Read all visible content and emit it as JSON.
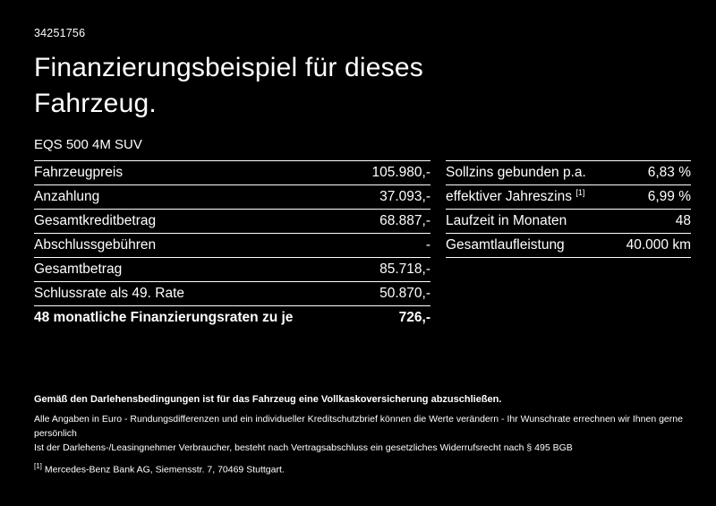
{
  "page": {
    "vehicle_id": "34251756",
    "title": "Finanzierungsbeispiel für dieses Fahrzeug.",
    "vehicle_model": "EQS 500 4M SUV"
  },
  "left_table": {
    "rows": [
      {
        "label": "Fahrzeugpreis",
        "value": "105.980,-"
      },
      {
        "label": "Anzahlung",
        "value": "37.093,-"
      },
      {
        "label": "Gesamtkreditbetrag",
        "value": "68.887,-"
      },
      {
        "label": "Abschlussgebühren",
        "value": "-"
      },
      {
        "label": "Gesamtbetrag",
        "value": "85.718,-"
      },
      {
        "label": "Schlussrate als 49. Rate",
        "value": "50.870,-"
      },
      {
        "label": "48 monatliche Finanzierungsraten zu je",
        "value": "726,-"
      }
    ]
  },
  "right_table": {
    "rows": [
      {
        "label": "Sollzins gebunden p.a.",
        "value": "6,83 %"
      },
      {
        "label": "effektiver Jahreszins",
        "sup": "[1]",
        "value": "6,99 %"
      },
      {
        "label": "Laufzeit in Monaten",
        "value": "48"
      },
      {
        "label": "Gesamtlaufleistung",
        "value": "40.000 km"
      }
    ]
  },
  "footer": {
    "bold_line": "Gemäß den Darlehensbedingungen ist für das Fahrzeug eine Vollkaskoversicherung abzuschließen.",
    "line2": "Alle Angaben in Euro - Rundungsdifferenzen und ein individueller Kreditschutzbrief können die Werte verändern - Ihr Wunschrate errechnen wir Ihnen gerne persönlich",
    "line3": "Ist der Darlehens-/Leasingnehmer Verbraucher, besteht nach Vertragsabschluss ein gesetzliches Widerrufsrecht nach § 495 BGB",
    "footnote_marker": "[1]",
    "footnote_text": "Mercedes-Benz Bank AG, Siemensstr. 7, 70469 Stuttgart."
  },
  "colors": {
    "background": "#000000",
    "text": "#ffffff",
    "divider": "#ffffff"
  }
}
